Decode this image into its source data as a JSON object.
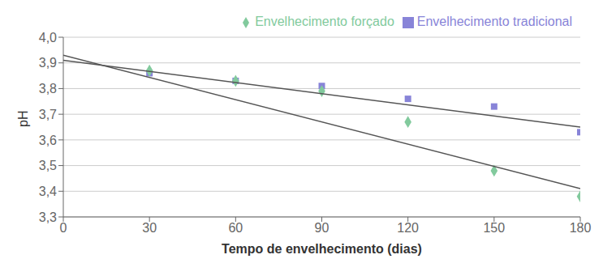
{
  "chart_data": {
    "type": "scatter",
    "xlabel": "Tempo de envelhecimento (dias)",
    "ylabel": "pH",
    "xlim": [
      0,
      180
    ],
    "ylim": [
      3.3,
      4.0
    ],
    "xticks": [
      0,
      30,
      60,
      90,
      120,
      150,
      180
    ],
    "yticks": [
      {
        "value": 3.3,
        "label": "3,3"
      },
      {
        "value": 3.4,
        "label": "3,4"
      },
      {
        "value": 3.5,
        "label": "3,5"
      },
      {
        "value": 3.6,
        "label": "3,6"
      },
      {
        "value": 3.7,
        "label": "3,7"
      },
      {
        "value": 3.8,
        "label": "3,8"
      },
      {
        "value": 3.9,
        "label": "3,9"
      },
      {
        "value": 4.0,
        "label": "4,0"
      }
    ],
    "grid": "y",
    "legend": "upper right",
    "series": [
      {
        "name": "Envelhecimento tradicional",
        "type": "scatter",
        "marker": "square",
        "color": "#8884d8",
        "x": [
          30,
          60,
          90,
          120,
          150,
          180
        ],
        "values": [
          3.86,
          3.83,
          3.81,
          3.76,
          3.73,
          3.63
        ]
      },
      {
        "name": "Envelhecimento forçado",
        "type": "scatter",
        "marker": "diamond",
        "color": "#82ca9d",
        "x": [
          30,
          60,
          90,
          120,
          150,
          180
        ],
        "values": [
          3.87,
          3.83,
          3.79,
          3.67,
          3.48,
          3.38
        ]
      },
      {
        "type": "line",
        "color": "#555555",
        "x": [
          0,
          180
        ],
        "values": [
          3.91,
          3.65
        ]
      },
      {
        "type": "line",
        "color": "#555555",
        "x": [
          0,
          180
        ],
        "values": [
          3.93,
          3.41
        ]
      }
    ]
  }
}
